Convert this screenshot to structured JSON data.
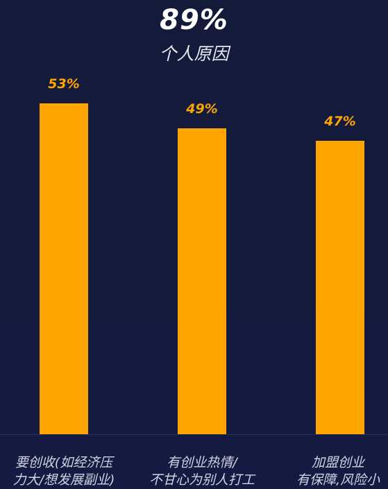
{
  "header": {
    "value": "89%",
    "label": "个人原因"
  },
  "colors": {
    "bar": "#ffa500",
    "value_label": "#ffa500",
    "axis": "#2a3258",
    "background": "#141b3a"
  },
  "chart_data": {
    "type": "bar",
    "categories": [
      "要创收(如经济压力大/想发展副业)",
      "有创业热情/不甘心为别人打工",
      "加盟创业有保障,风险小"
    ],
    "category_lines": [
      [
        "要创收(如经济压",
        "力大/想发展副业)"
      ],
      [
        "有创业热情/",
        "不甘心为别人打工"
      ],
      [
        "加盟创业",
        "有保障,风险小"
      ]
    ],
    "values": [
      53,
      49,
      47
    ],
    "value_labels": [
      "53%",
      "49%",
      "47%"
    ],
    "unit": "%",
    "ylim": [
      0,
      53
    ],
    "grid": false,
    "legend": "none"
  }
}
